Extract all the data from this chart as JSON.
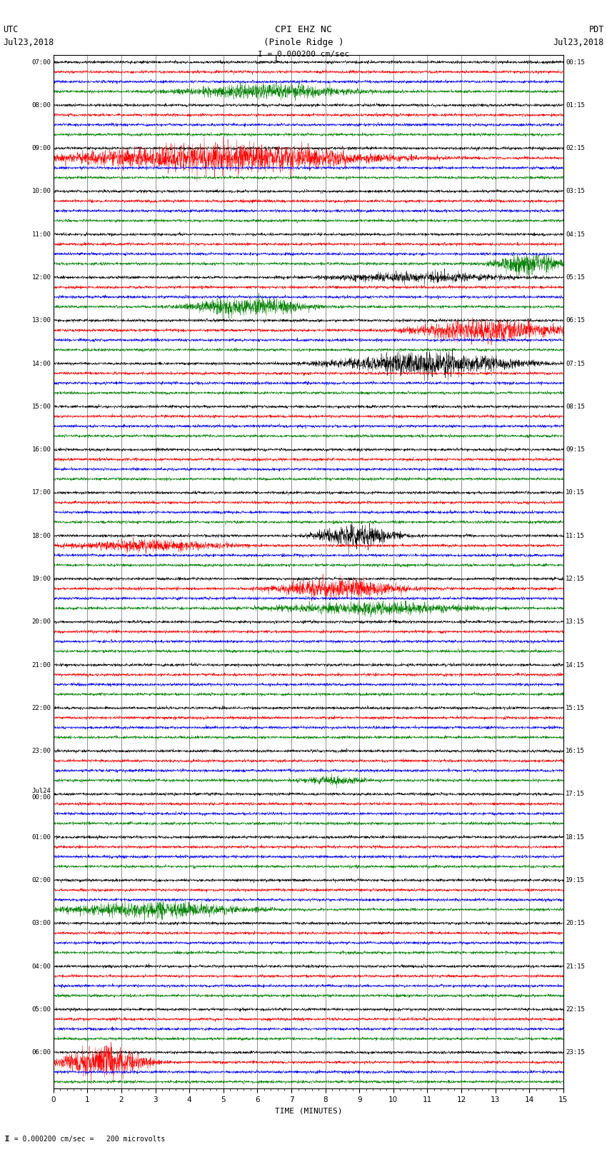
{
  "title_line1": "CPI EHZ NC",
  "title_line2": "(Pinole Ridge )",
  "scale_label": "I = 0.000200 cm/sec",
  "footer_note": "I = 0.000200 cm/sec =   200 microvolts",
  "xlabel": "TIME (MINUTES)",
  "bg_color": "#ffffff",
  "colors": [
    "black",
    "red",
    "blue",
    "green"
  ],
  "minutes_per_row": 15,
  "left_times_utc": [
    "07:00",
    "08:00",
    "09:00",
    "10:00",
    "11:00",
    "12:00",
    "13:00",
    "14:00",
    "15:00",
    "16:00",
    "17:00",
    "18:00",
    "19:00",
    "20:00",
    "21:00",
    "22:00",
    "23:00",
    "Jul24\n00:00",
    "01:00",
    "02:00",
    "03:00",
    "04:00",
    "05:00",
    "06:00"
  ],
  "right_times_pdt": [
    "00:15",
    "01:15",
    "02:15",
    "03:15",
    "04:15",
    "05:15",
    "06:15",
    "07:15",
    "08:15",
    "09:15",
    "10:15",
    "11:15",
    "12:15",
    "13:15",
    "14:15",
    "15:15",
    "16:15",
    "17:15",
    "18:15",
    "19:15",
    "20:15",
    "21:15",
    "22:15",
    "23:15"
  ],
  "num_rows": 24,
  "traces_per_row": 4,
  "seed": 42
}
